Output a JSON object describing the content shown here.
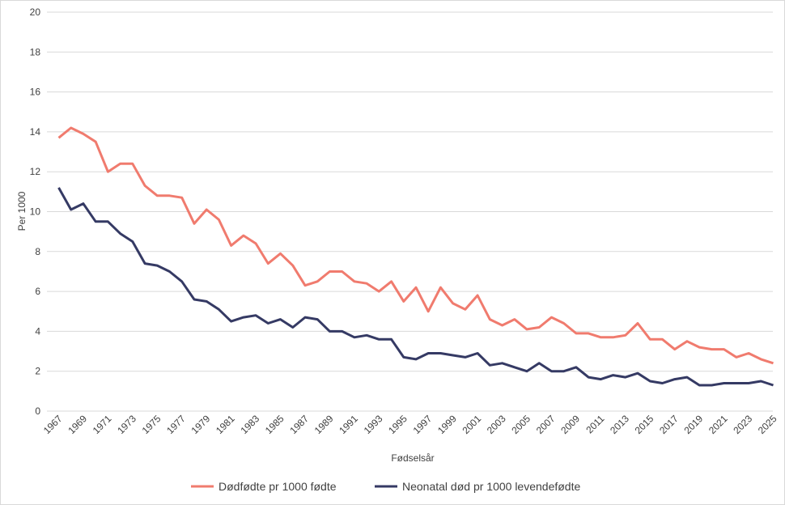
{
  "chart_data": {
    "type": "line",
    "xlabel": "Fødselsår",
    "ylabel": "Per 1000",
    "ylim": [
      0,
      20
    ],
    "yticks": [
      0,
      2,
      4,
      6,
      8,
      10,
      12,
      14,
      16,
      18,
      20
    ],
    "grid": true,
    "legend_placement": "bottom",
    "x": [
      1967,
      1968,
      1969,
      1970,
      1971,
      1972,
      1973,
      1974,
      1975,
      1976,
      1977,
      1978,
      1979,
      1980,
      1981,
      1982,
      1983,
      1984,
      1985,
      1986,
      1987,
      1988,
      1989,
      1990,
      1991,
      1992,
      1993,
      1994,
      1995,
      1996,
      1997,
      1998,
      1999,
      2000,
      2001,
      2002,
      2003,
      2004,
      2005,
      2006,
      2007,
      2008,
      2009,
      2010,
      2011,
      2012,
      2013,
      2014,
      2015,
      2016,
      2017,
      2018,
      2019,
      2020,
      2021,
      2022,
      2023,
      2024,
      2025
    ],
    "series": [
      {
        "name": "Dødfødte pr 1000 fødte",
        "color": "#f07b6e",
        "values": [
          13.7,
          14.2,
          13.9,
          13.5,
          12.0,
          12.4,
          12.4,
          11.3,
          10.8,
          10.8,
          10.7,
          9.4,
          10.1,
          9.6,
          8.3,
          8.8,
          8.4,
          7.4,
          7.9,
          7.3,
          6.3,
          6.5,
          7.0,
          7.0,
          6.5,
          6.4,
          6.0,
          6.5,
          5.5,
          6.2,
          5.0,
          6.2,
          5.4,
          5.1,
          5.8,
          4.6,
          4.3,
          4.6,
          4.1,
          4.2,
          4.7,
          4.4,
          3.9,
          3.9,
          3.7,
          3.7,
          3.8,
          4.4,
          3.6,
          3.6,
          3.1,
          3.5,
          3.2,
          3.1,
          3.1,
          2.7,
          2.9,
          2.6,
          2.4
        ]
      },
      {
        "name": "Neonatal død pr 1000 levendefødte",
        "color": "#353a64",
        "values": [
          11.2,
          10.1,
          10.4,
          9.5,
          9.5,
          8.9,
          8.5,
          7.4,
          7.3,
          7.0,
          6.5,
          5.6,
          5.5,
          5.1,
          4.5,
          4.7,
          4.8,
          4.4,
          4.6,
          4.2,
          4.7,
          4.6,
          4.0,
          4.0,
          3.7,
          3.8,
          3.6,
          3.6,
          2.7,
          2.6,
          2.9,
          2.9,
          2.8,
          2.7,
          2.9,
          2.3,
          2.4,
          2.2,
          2.0,
          2.4,
          2.0,
          2.0,
          2.2,
          1.7,
          1.6,
          1.8,
          1.7,
          1.9,
          1.5,
          1.4,
          1.6,
          1.7,
          1.3,
          1.3,
          1.4,
          1.4,
          1.4,
          1.5,
          1.3
        ]
      }
    ]
  }
}
